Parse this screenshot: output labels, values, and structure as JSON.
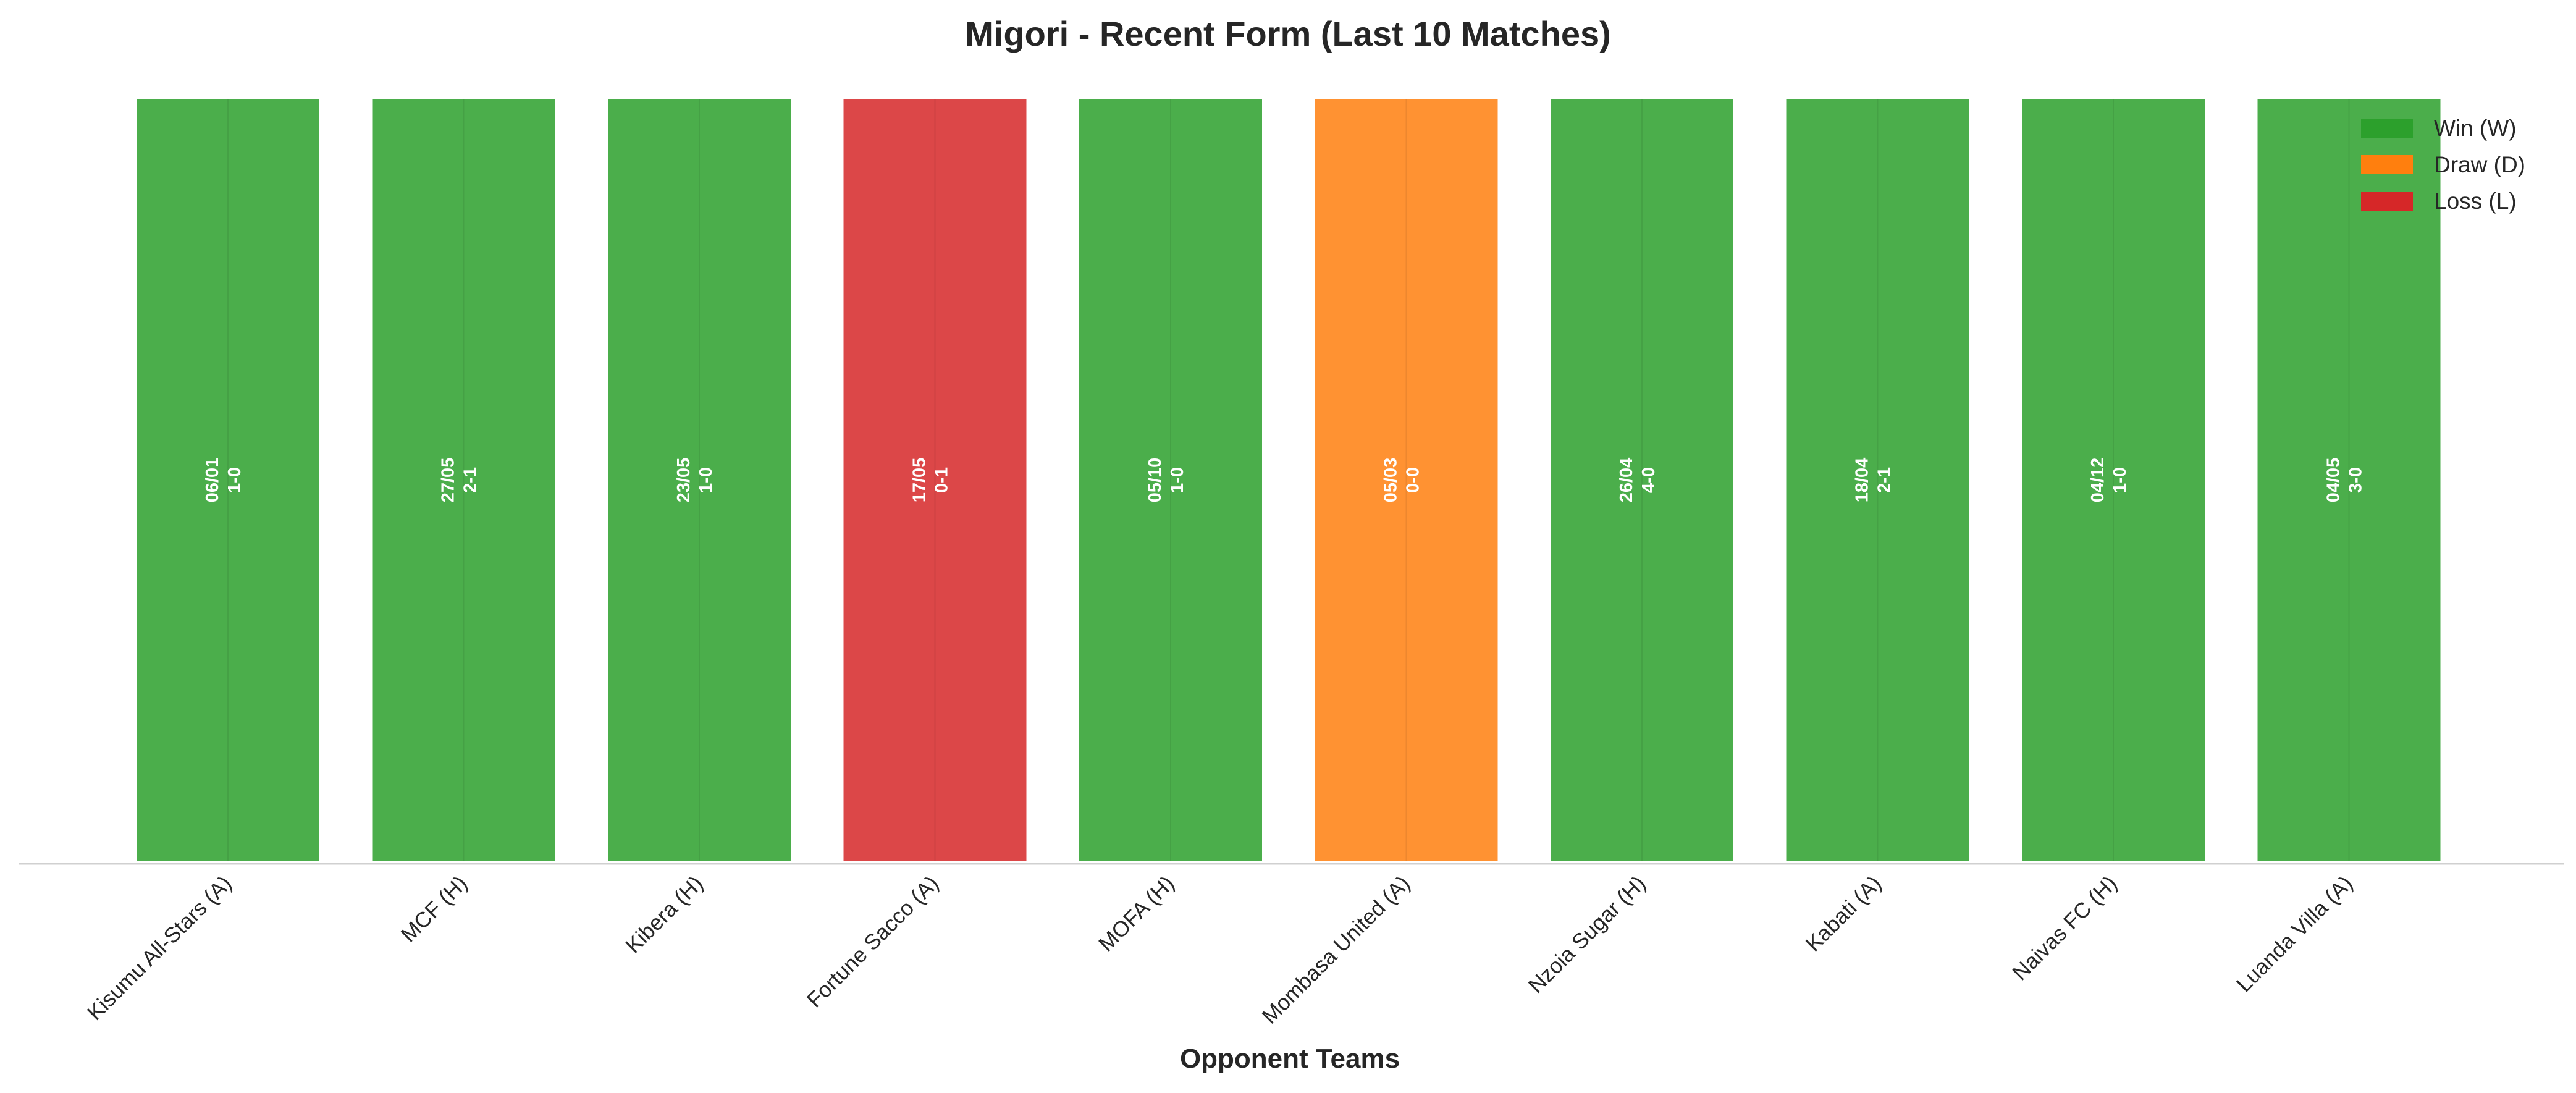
{
  "chart_data": {
    "type": "bar",
    "title": "Migori - Recent Form (Last 10 Matches)",
    "xlabel": "Opponent Teams",
    "ylabel": "",
    "grid": false,
    "legend_position": "top-right",
    "categories": [
      "Kisumu All-Stars (A)",
      "MCF (H)",
      "Kibera (H)",
      "Fortune Sacco (A)",
      "MOFA (H)",
      "Mombasa United (A)",
      "Nzoia Sugar (H)",
      "Kabati (A)",
      "Naivas FC (H)",
      "Luanda Villa (A)"
    ],
    "values": [
      1,
      1,
      1,
      1,
      1,
      1,
      1,
      1,
      1,
      1
    ],
    "results": [
      "W",
      "W",
      "W",
      "L",
      "W",
      "D",
      "W",
      "W",
      "W",
      "W"
    ],
    "dates": [
      "06/01",
      "27/05",
      "23/05",
      "17/05",
      "05/10",
      "05/03",
      "26/04",
      "18/04",
      "04/12",
      "04/05"
    ],
    "scores": [
      "1-0",
      "2-1",
      "1-0",
      "0-1",
      "1-0",
      "0-0",
      "4-0",
      "2-1",
      "1-0",
      "3-0"
    ],
    "legend": [
      {
        "key": "W",
        "label": "Win (W)",
        "color": "#2ca02c"
      },
      {
        "key": "D",
        "label": "Draw (D)",
        "color": "#ff7f0e"
      },
      {
        "key": "L",
        "label": "Loss (L)",
        "color": "#d62728"
      }
    ]
  }
}
